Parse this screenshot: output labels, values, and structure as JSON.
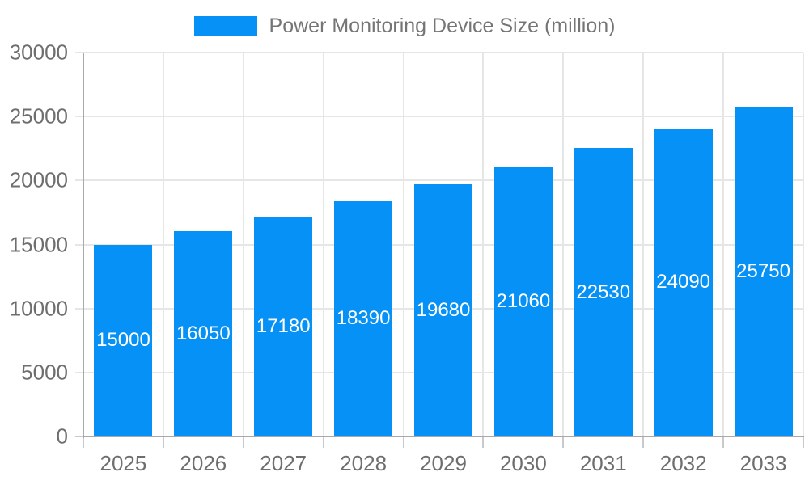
{
  "chart_data": {
    "type": "bar",
    "title": "Power Monitoring Device Size (million)",
    "legend_entries": [
      "Power Monitoring Device Size (million)"
    ],
    "legend_position": "top-center",
    "categories": [
      "2025",
      "2026",
      "2027",
      "2028",
      "2029",
      "2030",
      "2031",
      "2032",
      "2033"
    ],
    "series": [
      {
        "name": "Power Monitoring Device Size (million)",
        "values": [
          15000,
          16050,
          17180,
          18390,
          19680,
          21060,
          22530,
          24090,
          25750
        ]
      }
    ],
    "xlabel": "",
    "ylabel": "",
    "ylim": [
      0,
      30000
    ],
    "yticks": [
      0,
      5000,
      10000,
      15000,
      20000,
      25000,
      30000
    ],
    "grid": true,
    "value_labels": {
      "show": true,
      "position": "inside-center"
    }
  },
  "colors": {
    "bar": "#0591F5",
    "background": "#FFFFFF",
    "grid_line": "#E6E6E6",
    "axis_line": "#A9A9A9",
    "axis_tick": "#C9C9C9",
    "tick_label": "#6E6E6E",
    "legend_text": "#757575",
    "value_label": "#FFFFFF"
  }
}
